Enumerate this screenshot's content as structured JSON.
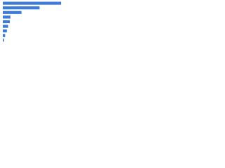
{
  "chart_data": {
    "type": "bar",
    "orientation": "horizontal",
    "values": [
      100,
      63,
      32,
      13,
      12,
      9,
      7,
      4,
      2
    ],
    "color": "#3d7bd9"
  }
}
